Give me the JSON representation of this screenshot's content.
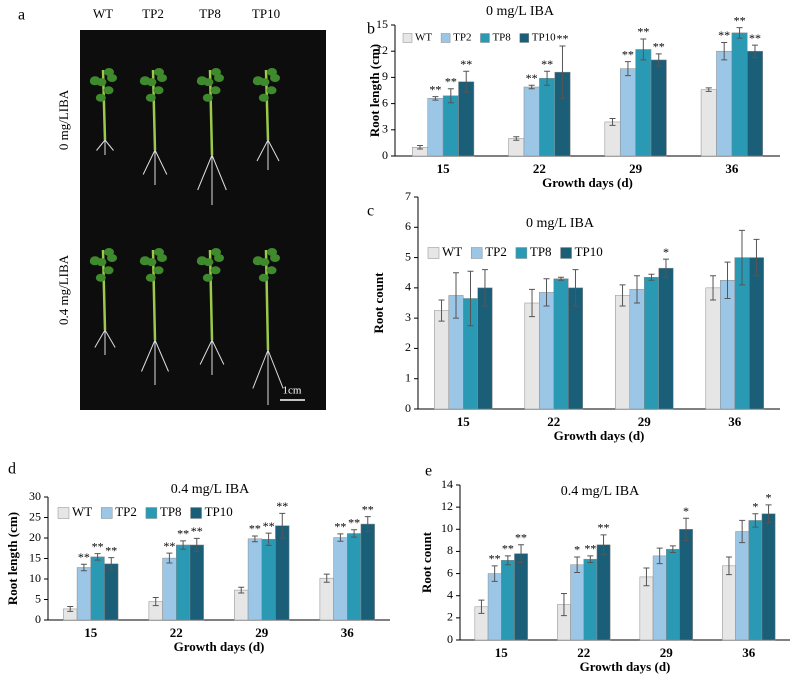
{
  "photo_panel": {
    "panel_label": "a",
    "columns": [
      "WT",
      "TP2",
      "TP8",
      "TP10"
    ],
    "rows": [
      "0 mg/LIBA",
      "0.4 mg/LIBA"
    ],
    "scale_bar": "1cm"
  },
  "chart_data": [
    {
      "type": "bar",
      "panel_label": "b",
      "title": "0 mg/L IBA",
      "x_label": "Growth days (d)",
      "y_label": "Root length (cm)",
      "categories": [
        "15",
        "22",
        "29",
        "36"
      ],
      "ylim": [
        0,
        15
      ],
      "yticks": [
        0,
        3,
        6,
        9,
        12,
        15
      ],
      "legend": "upper left",
      "series": [
        {
          "name": "WT",
          "color": "#e6e6e6",
          "values": [
            1.0,
            2.0,
            3.9,
            7.6
          ],
          "errors": [
            0.2,
            0.2,
            0.4,
            0.2
          ],
          "significance": [
            null,
            null,
            null,
            null
          ]
        },
        {
          "name": "TP2",
          "color": "#9cc6e6",
          "values": [
            6.6,
            7.9,
            10.0,
            12.0
          ],
          "errors": [
            0.2,
            0.2,
            0.8,
            1.0
          ],
          "significance": [
            "**",
            "**",
            "**",
            "**"
          ]
        },
        {
          "name": "TP8",
          "color": "#2a9ab4",
          "values": [
            6.9,
            8.9,
            12.2,
            14.1
          ],
          "errors": [
            0.8,
            0.8,
            1.2,
            0.6
          ],
          "significance": [
            "**",
            "**",
            "**",
            "**"
          ]
        },
        {
          "name": "TP10",
          "color": "#1b5e78",
          "values": [
            8.5,
            9.6,
            11.0,
            12.0
          ],
          "errors": [
            1.2,
            3.0,
            0.7,
            0.7
          ],
          "significance": [
            "**",
            "**",
            "**",
            "**"
          ]
        }
      ]
    },
    {
      "type": "bar",
      "panel_label": "c",
      "title": "0 mg/L IBA",
      "x_label": "Growth days (d)",
      "y_label": "Root count",
      "categories": [
        "15",
        "22",
        "29",
        "36"
      ],
      "ylim": [
        0,
        7
      ],
      "yticks": [
        0,
        1,
        2,
        3,
        4,
        5,
        6,
        7
      ],
      "legend": "upper left",
      "series": [
        {
          "name": "WT",
          "color": "#e6e6e6",
          "values": [
            3.25,
            3.5,
            3.75,
            4.0
          ],
          "errors": [
            0.35,
            0.45,
            0.35,
            0.4
          ],
          "significance": [
            null,
            null,
            null,
            null
          ]
        },
        {
          "name": "TP2",
          "color": "#9cc6e6",
          "values": [
            3.75,
            3.85,
            3.95,
            4.25
          ],
          "errors": [
            0.75,
            0.45,
            0.45,
            0.6
          ],
          "significance": [
            null,
            null,
            null,
            null
          ]
        },
        {
          "name": "TP8",
          "color": "#2a9ab4",
          "values": [
            3.65,
            4.3,
            4.35,
            5.0
          ],
          "errors": [
            0.9,
            0.05,
            0.1,
            0.9
          ],
          "significance": [
            null,
            null,
            null,
            null
          ]
        },
        {
          "name": "TP10",
          "color": "#1b5e78",
          "values": [
            4.0,
            4.0,
            4.65,
            5.0
          ],
          "errors": [
            0.6,
            0.6,
            0.3,
            0.6
          ],
          "significance": [
            null,
            null,
            "*",
            null
          ]
        }
      ]
    },
    {
      "type": "bar",
      "panel_label": "d",
      "title": "0.4 mg/L IBA",
      "x_label": "Growth days (d)",
      "y_label": "Root length (cm)",
      "categories": [
        "15",
        "22",
        "29",
        "36"
      ],
      "ylim": [
        0,
        30
      ],
      "yticks": [
        0,
        5,
        10,
        15,
        20,
        25,
        30
      ],
      "legend": "upper left",
      "series": [
        {
          "name": "WT",
          "color": "#e6e6e6",
          "values": [
            2.7,
            4.5,
            7.3,
            10.2
          ],
          "errors": [
            0.6,
            1.0,
            0.7,
            1.0
          ],
          "significance": [
            null,
            null,
            null,
            null
          ]
        },
        {
          "name": "TP2",
          "color": "#9cc6e6",
          "values": [
            12.8,
            15.1,
            19.8,
            20.1
          ],
          "errors": [
            0.8,
            1.2,
            0.7,
            0.9
          ],
          "significance": [
            "**",
            "**",
            "**",
            "**"
          ]
        },
        {
          "name": "TP8",
          "color": "#2a9ab4",
          "values": [
            15.4,
            18.3,
            19.7,
            21.1
          ],
          "errors": [
            0.8,
            1.0,
            1.5,
            0.9
          ],
          "significance": [
            "**",
            "**",
            "**",
            "**"
          ]
        },
        {
          "name": "TP10",
          "color": "#1b5e78",
          "values": [
            13.7,
            18.3,
            23.0,
            23.4
          ],
          "errors": [
            1.5,
            1.6,
            3.0,
            1.8
          ],
          "significance": [
            "**",
            "**",
            "**",
            "**"
          ]
        }
      ]
    },
    {
      "type": "bar",
      "panel_label": "e",
      "title": "0.4 mg/L IBA",
      "x_label": "Growth days (d)",
      "y_label": "Root count",
      "categories": [
        "15",
        "22",
        "29",
        "36"
      ],
      "ylim": [
        0,
        14
      ],
      "yticks": [
        0,
        2,
        4,
        6,
        8,
        10,
        12,
        14
      ],
      "series": [
        {
          "color": "#e6e6e6",
          "values": [
            3.0,
            3.2,
            5.7,
            6.7
          ],
          "errors": [
            0.6,
            1.0,
            0.8,
            0.8
          ],
          "significance": [
            null,
            null,
            null,
            null
          ]
        },
        {
          "color": "#9cc6e6",
          "values": [
            6.0,
            6.8,
            7.6,
            9.8
          ],
          "errors": [
            0.7,
            0.7,
            0.7,
            1.0
          ],
          "significance": [
            "**",
            "*",
            null,
            null
          ]
        },
        {
          "color": "#2a9ab4",
          "values": [
            7.2,
            7.3,
            8.2,
            10.8
          ],
          "errors": [
            0.4,
            0.3,
            0.3,
            0.6
          ],
          "significance": [
            "**",
            "**",
            null,
            "*"
          ]
        },
        {
          "color": "#1b5e78",
          "values": [
            7.8,
            8.6,
            10.0,
            11.4
          ],
          "errors": [
            0.8,
            0.9,
            1.0,
            0.8
          ],
          "significance": [
            "**",
            "**",
            "*",
            "*"
          ]
        }
      ]
    }
  ]
}
